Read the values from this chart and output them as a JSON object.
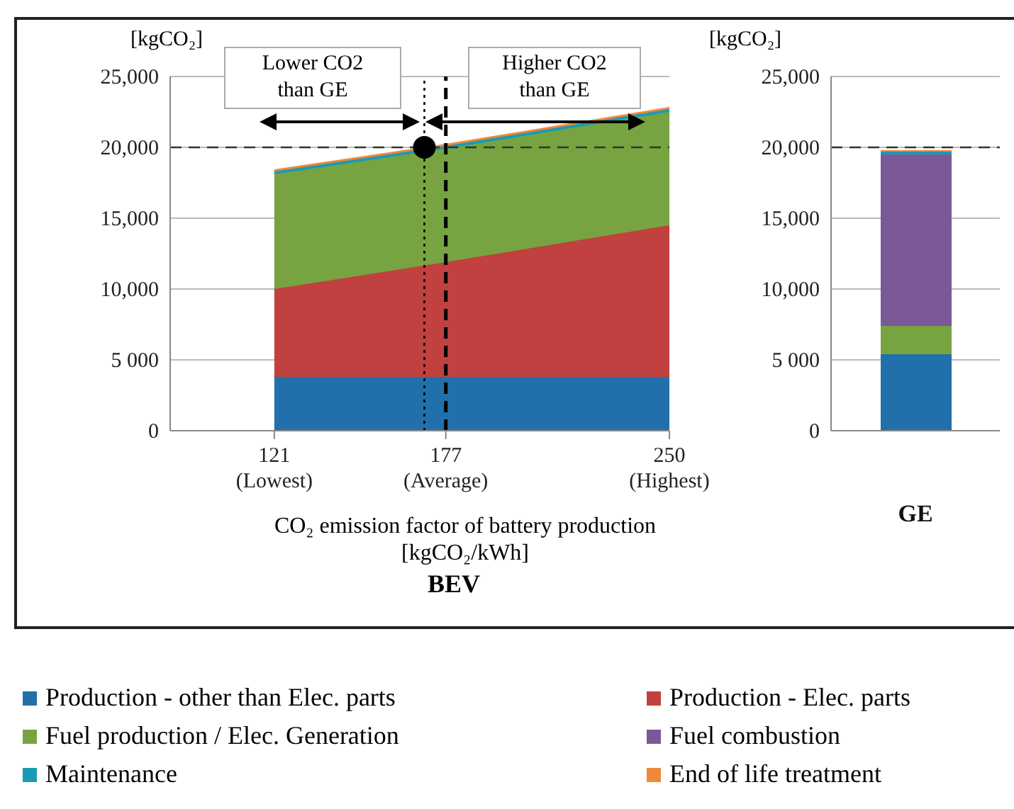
{
  "chart_data": [
    {
      "type": "area",
      "stacked": true,
      "title": "BEV",
      "xlabel": "CO₂ emission factor of battery production [kgCO₂/kWh]",
      "ylabel": "[kgCO₂]",
      "x": [
        121,
        177,
        250
      ],
      "xlim": [
        87,
        250
      ],
      "xticks": [
        {
          "value": 121,
          "label": "121\n(Lowest)"
        },
        {
          "value": 177,
          "label": "177\n(Average)"
        },
        {
          "value": 250,
          "label": "250\n(Highest)"
        }
      ],
      "ylim": [
        0,
        25000
      ],
      "yticks": [
        0,
        {
          "value": 5000,
          "label": "5 000"
        },
        {
          "value": 10000,
          "label": "10,000"
        },
        {
          "value": 15000,
          "label": "15,000"
        },
        {
          "value": 20000,
          "label": "20,000"
        },
        {
          "value": 25000,
          "label": "25,000"
        }
      ],
      "grid": "y",
      "legend": "bottom",
      "annotations": [
        "Lower CO2 than GE",
        "Higher CO2 than GE"
      ],
      "ref_lines": [
        {
          "axis": "x",
          "value": 170,
          "line_style": "dotted",
          "color": "#000000"
        },
        {
          "axis": "x",
          "value": 177,
          "line_style": "dashed",
          "color": "#000000"
        },
        {
          "axis": "y",
          "value": 20000,
          "line_style": "dashed",
          "color": "#333333"
        }
      ],
      "series": [
        {
          "name": "Production - other than Elec. parts",
          "color": "#2170ab",
          "values": [
            3800,
            3800,
            3800
          ]
        },
        {
          "name": "Production - Elec. parts",
          "color": "#c0413f",
          "values": [
            6200,
            8100,
            10700
          ]
        },
        {
          "name": "Fuel production / Elec. Generation",
          "color": "#77a441",
          "values": [
            8100,
            8000,
            8000
          ]
        },
        {
          "name": "Maintenance",
          "color": "#1a9bb3",
          "values": [
            200,
            200,
            200
          ]
        },
        {
          "name": "End of life treatment",
          "color": "#f0883a",
          "values": [
            100,
            100,
            100
          ]
        },
        {
          "type": "scatter",
          "x": [
            170
          ],
          "values": [
            20000
          ],
          "color": "#000000",
          "marker": "circle"
        }
      ]
    },
    {
      "type": "bar",
      "stacked": true,
      "ylabel": "[kgCO₂]",
      "categories": [
        "GE"
      ],
      "ylim": [
        0,
        25000
      ],
      "yticks": [
        0,
        {
          "value": 5000,
          "label": "5 000"
        },
        {
          "value": 10000,
          "label": "10,000"
        },
        {
          "value": 15000,
          "label": "15,000"
        },
        {
          "value": 20000,
          "label": "20,000"
        },
        {
          "value": 25000,
          "label": "25,000"
        }
      ],
      "grid": "y",
      "ref_lines": [
        {
          "axis": "y",
          "value": 20000,
          "line_style": "dashed",
          "color": "#333333"
        }
      ],
      "series": [
        {
          "color": "#2170ab",
          "values": [
            5400
          ]
        },
        {
          "color": "#77a441",
          "values": [
            2000
          ]
        },
        {
          "name": "Fuel combustion",
          "color": "#7b5896",
          "values": [
            12100
          ]
        },
        {
          "color": "#1a9bb3",
          "values": [
            200
          ]
        },
        {
          "color": "#f0883a",
          "values": [
            100
          ]
        }
      ]
    }
  ]
}
